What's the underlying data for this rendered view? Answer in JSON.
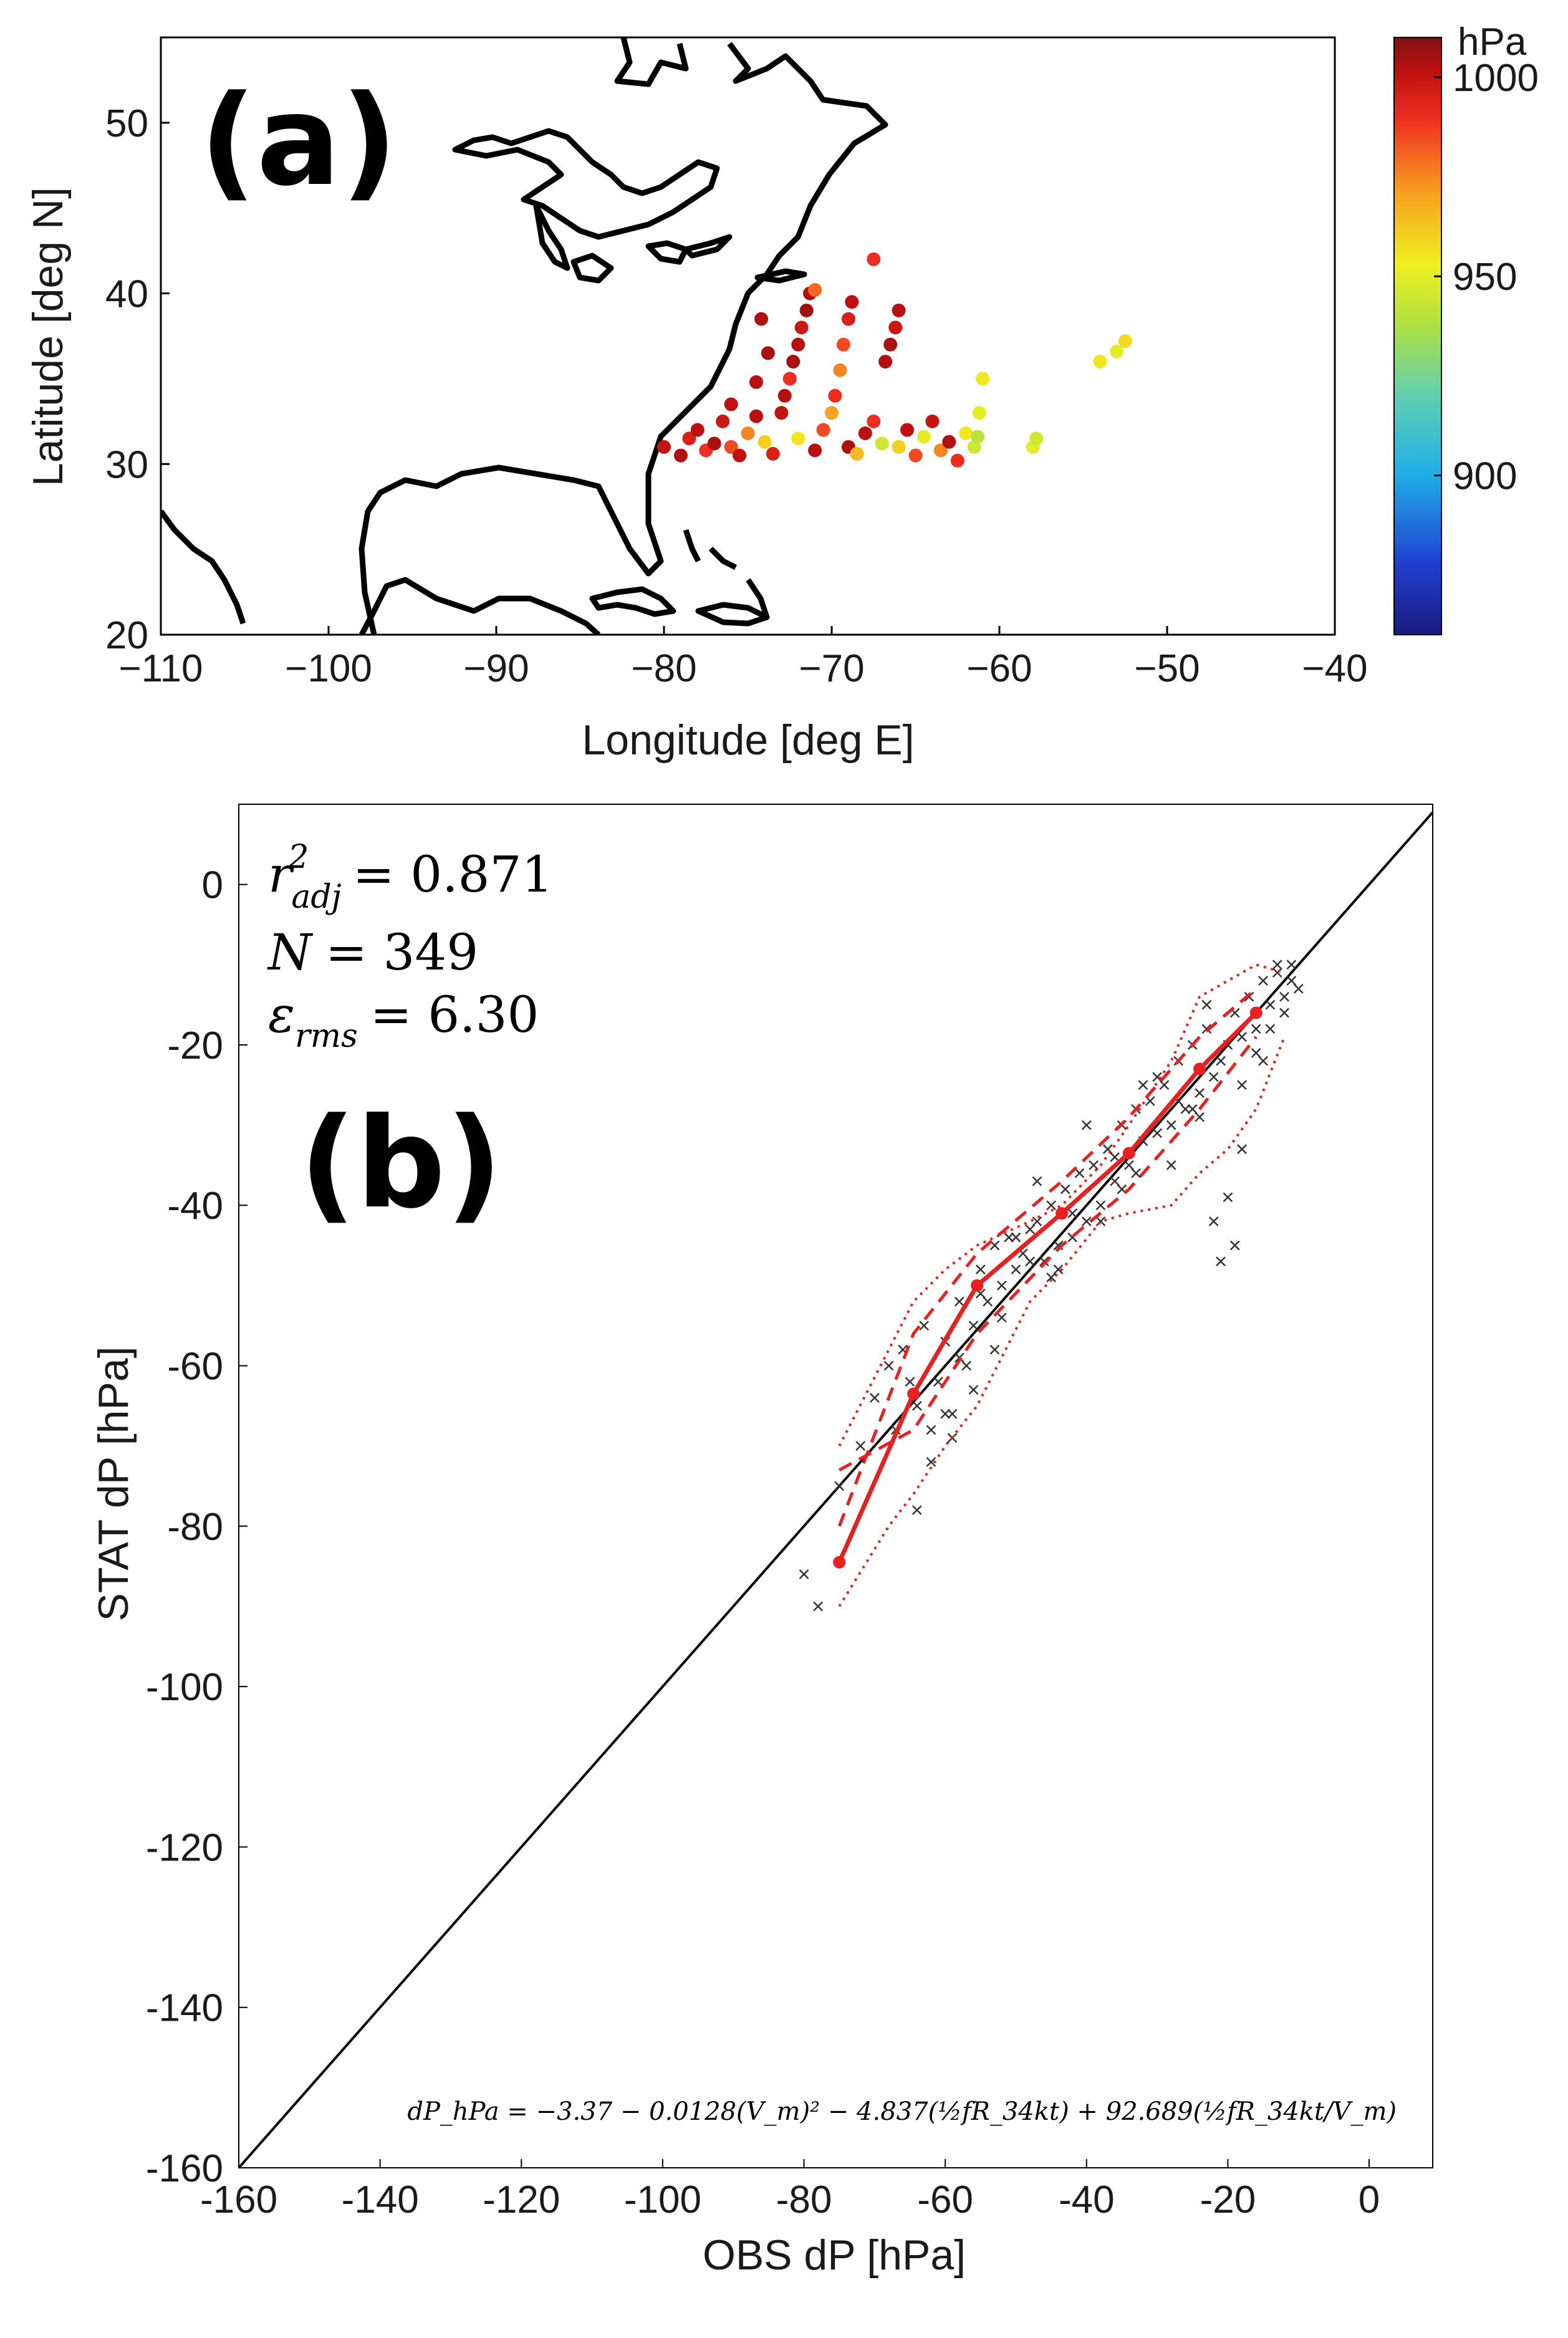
{
  "chart_data": [
    {
      "type": "scatter",
      "panel_label": "(a)",
      "title": "",
      "xlabel": "Longitude [deg E]",
      "ylabel": "Latitude [deg N]",
      "xlim": [
        -110,
        -40
      ],
      "ylim": [
        20,
        55
      ],
      "xticks": [
        -110,
        -100,
        -90,
        -80,
        -70,
        -60,
        -50,
        -40
      ],
      "yticks": [
        20,
        30,
        40,
        50
      ],
      "colorbar": {
        "label": "hPa",
        "range": [
          860,
          1010
        ],
        "ticks": [
          900,
          950,
          1000
        ],
        "colormap": [
          "#1a1a80",
          "#2040d0",
          "#20b0e8",
          "#60d0b0",
          "#b0e040",
          "#f0f020",
          "#f8a020",
          "#f03020",
          "#c01010",
          "#801010"
        ]
      },
      "coastline_color": "#000000",
      "points": [
        {
          "lon": -80,
          "lat": 31,
          "p": 1000
        },
        {
          "lon": -79,
          "lat": 30.5,
          "p": 1003
        },
        {
          "lon": -78.5,
          "lat": 31.5,
          "p": 995
        },
        {
          "lon": -78,
          "lat": 32,
          "p": 1002
        },
        {
          "lon": -77.5,
          "lat": 30.8,
          "p": 990
        },
        {
          "lon": -77,
          "lat": 31.2,
          "p": 1004
        },
        {
          "lon": -76.5,
          "lat": 32.5,
          "p": 998
        },
        {
          "lon": -76,
          "lat": 31,
          "p": 985
        },
        {
          "lon": -75.5,
          "lat": 30.5,
          "p": 1001
        },
        {
          "lon": -75,
          "lat": 31.8,
          "p": 975
        },
        {
          "lon": -74.5,
          "lat": 32.8,
          "p": 1002
        },
        {
          "lon": -74,
          "lat": 31.3,
          "p": 960
        },
        {
          "lon": -73.5,
          "lat": 30.6,
          "p": 995
        },
        {
          "lon": -73,
          "lat": 33,
          "p": 1000
        },
        {
          "lon": -72.8,
          "lat": 34,
          "p": 1003
        },
        {
          "lon": -72.5,
          "lat": 35,
          "p": 990
        },
        {
          "lon": -72.3,
          "lat": 36,
          "p": 1004
        },
        {
          "lon": -72,
          "lat": 37,
          "p": 1002
        },
        {
          "lon": -71.8,
          "lat": 38,
          "p": 998
        },
        {
          "lon": -71.5,
          "lat": 39,
          "p": 1005
        },
        {
          "lon": -71.3,
          "lat": 40,
          "p": 1003
        },
        {
          "lon": -72,
          "lat": 31.5,
          "p": 955
        },
        {
          "lon": -71,
          "lat": 30.8,
          "p": 1002
        },
        {
          "lon": -70.5,
          "lat": 32,
          "p": 985
        },
        {
          "lon": -70,
          "lat": 33,
          "p": 970
        },
        {
          "lon": -69.8,
          "lat": 34,
          "p": 990
        },
        {
          "lon": -69.5,
          "lat": 35.5,
          "p": 975
        },
        {
          "lon": -69.3,
          "lat": 37,
          "p": 985
        },
        {
          "lon": -69,
          "lat": 38.5,
          "p": 995
        },
        {
          "lon": -68.8,
          "lat": 39.5,
          "p": 1001
        },
        {
          "lon": -69,
          "lat": 31,
          "p": 1004
        },
        {
          "lon": -68.5,
          "lat": 30.6,
          "p": 965
        },
        {
          "lon": -68,
          "lat": 31.8,
          "p": 1002
        },
        {
          "lon": -67.5,
          "lat": 32.5,
          "p": 990
        },
        {
          "lon": -67,
          "lat": 31.2,
          "p": 945
        },
        {
          "lon": -66.8,
          "lat": 36,
          "p": 1003
        },
        {
          "lon": -66.5,
          "lat": 37,
          "p": 1004
        },
        {
          "lon": -66.2,
          "lat": 38,
          "p": 998
        },
        {
          "lon": -66,
          "lat": 39,
          "p": 1002
        },
        {
          "lon": -66,
          "lat": 31,
          "p": 960
        },
        {
          "lon": -65.5,
          "lat": 32,
          "p": 1001
        },
        {
          "lon": -65,
          "lat": 30.5,
          "p": 985
        },
        {
          "lon": -64.5,
          "lat": 31.6,
          "p": 950
        },
        {
          "lon": -64,
          "lat": 32.5,
          "p": 1000
        },
        {
          "lon": -63.5,
          "lat": 30.8,
          "p": 975
        },
        {
          "lon": -63,
          "lat": 31.3,
          "p": 1003
        },
        {
          "lon": -62.5,
          "lat": 30.2,
          "p": 990
        },
        {
          "lon": -62,
          "lat": 31.8,
          "p": 955
        },
        {
          "lon": -61.5,
          "lat": 31,
          "p": 945
        },
        {
          "lon": -61.2,
          "lat": 33,
          "p": 950
        },
        {
          "lon": -61,
          "lat": 35,
          "p": 955
        },
        {
          "lon": -61.3,
          "lat": 31.6,
          "p": 940
        },
        {
          "lon": -58,
          "lat": 31,
          "p": 950
        },
        {
          "lon": -57.8,
          "lat": 31.5,
          "p": 945
        },
        {
          "lon": -54,
          "lat": 36,
          "p": 955
        },
        {
          "lon": -53,
          "lat": 36.6,
          "p": 950
        },
        {
          "lon": -52.5,
          "lat": 37.2,
          "p": 958
        },
        {
          "lon": -67.5,
          "lat": 42,
          "p": 990
        },
        {
          "lon": -71,
          "lat": 40.2,
          "p": 980
        },
        {
          "lon": -74.5,
          "lat": 34.8,
          "p": 1002
        },
        {
          "lon": -73.8,
          "lat": 36.5,
          "p": 1004
        },
        {
          "lon": -74.2,
          "lat": 38.5,
          "p": 1003
        },
        {
          "lon": -76,
          "lat": 33.5,
          "p": 1001
        }
      ]
    },
    {
      "type": "scatter",
      "panel_label": "(b)",
      "title": "",
      "xlabel": "OBS dP [hPa]",
      "ylabel": "STAT dP [hPa]",
      "xlim": [
        -160,
        9
      ],
      "ylim": [
        -160,
        10
      ],
      "xticks": [
        -160,
        -140,
        -120,
        -100,
        -80,
        -60,
        -40,
        -20,
        0
      ],
      "yticks": [
        -160,
        -140,
        -120,
        -100,
        -80,
        -60,
        -40,
        -20,
        0
      ],
      "stats": {
        "r2_label": "r",
        "r2_sup": "2",
        "r2_sub": "adj",
        "r2_value": "= 0.871",
        "n_label": "N",
        "n_value": "= 349",
        "eps_label": "ε",
        "eps_sub": "rms",
        "eps_value": "= 6.30"
      },
      "equation": "dP_hPa = −3.37 − 0.0128(V_m)² − 4.837(½fR_34kt) + 92.689(½fR_34kt/V_m)",
      "identity_line": {
        "from": [
          -160,
          -160
        ],
        "to": [
          9,
          9
        ]
      },
      "series": [
        {
          "name": "observations",
          "marker": "x",
          "color": "#333333",
          "x": [
            -80,
            -78,
            -75,
            -72,
            -70,
            -68,
            -66,
            -65,
            -64,
            -63,
            -62,
            -61,
            -60,
            -59,
            -58,
            -57,
            -56,
            -55,
            -54,
            -53,
            -52,
            -51,
            -50,
            -49,
            -48,
            -47,
            -46,
            -45,
            -44,
            -43,
            -42,
            -41,
            -40,
            -39,
            -38,
            -37,
            -36,
            -35,
            -34,
            -33,
            -32,
            -31,
            -30,
            -29,
            -28,
            -27,
            -26,
            -25,
            -24,
            -23,
            -22,
            -21,
            -20,
            -19,
            -18,
            -17,
            -16,
            -15,
            -14,
            -13,
            -12,
            -11,
            -10,
            -62,
            -60,
            -58,
            -55,
            -52,
            -48,
            -45,
            -42,
            -38,
            -35,
            -32,
            -28,
            -25,
            -22,
            -20,
            -18,
            -16,
            -14,
            -12,
            -21,
            -19,
            -24,
            -27,
            -30,
            -33,
            -36,
            -40,
            -44,
            -47,
            -50,
            -53,
            -56,
            -59,
            -64,
            -67,
            -23,
            -18,
            -15,
            -13,
            -11
          ],
          "y": [
            -86,
            -90,
            -75,
            -70,
            -64,
            -60,
            -58,
            -62,
            -65,
            -55,
            -68,
            -62,
            -57,
            -66,
            -52,
            -60,
            -55,
            -48,
            -52,
            -45,
            -50,
            -44,
            -48,
            -46,
            -43,
            -42,
            -47,
            -40,
            -45,
            -38,
            -44,
            -36,
            -42,
            -35,
            -40,
            -33,
            -37,
            -30,
            -35,
            -28,
            -32,
            -27,
            -31,
            -25,
            -30,
            -22,
            -28,
            -20,
            -26,
            -18,
            -24,
            -22,
            -20,
            -16,
            -19,
            -14,
            -18,
            -12,
            -15,
            -11,
            -14,
            -12,
            -13,
            -72,
            -66,
            -59,
            -51,
            -54,
            -47,
            -49,
            -41,
            -42,
            -38,
            -25,
            -35,
            -28,
            -42,
            -39,
            -33,
            -21,
            -18,
            -16,
            -47,
            -45,
            -29,
            -27,
            -24,
            -36,
            -34,
            -30,
            -48,
            -37,
            -44,
            -58,
            -63,
            -69,
            -78,
            -68,
            -15,
            -25,
            -22,
            -10,
            -10
          ]
        },
        {
          "name": "binned mean",
          "style": "solid",
          "color": "#e82020",
          "x": [
            -75,
            -64.5,
            -55.5,
            -43.5,
            -34,
            -24,
            -16
          ],
          "y": [
            -84.5,
            -63.5,
            -50,
            -41,
            -33.5,
            -23,
            -16
          ]
        },
        {
          "name": "±1 std",
          "style": "dashed",
          "color": "#e82020",
          "x": [
            -75,
            -64.5,
            -55.5,
            -43.5,
            -34,
            -24,
            -16
          ],
          "y": [
            -80,
            -56,
            -46,
            -37,
            -29,
            -19,
            -13
          ]
        },
        {
          "name": "±1 std lower",
          "style": "dashed",
          "color": "#e82020",
          "x": [
            -75,
            -64.5,
            -55.5,
            -43.5,
            -34,
            -24,
            -16
          ],
          "y": [
            -73,
            -68,
            -56,
            -45,
            -38,
            -28,
            -19
          ]
        },
        {
          "name": "range upper",
          "style": "dotted",
          "color": "#e82020",
          "x": [
            -75,
            -68,
            -64.5,
            -60,
            -55.5,
            -48,
            -43.5,
            -38,
            -34,
            -28,
            -24,
            -20,
            -16,
            -12
          ],
          "y": [
            -70,
            -58,
            -52,
            -48,
            -45,
            -42,
            -40,
            -35,
            -30,
            -22,
            -14,
            -12,
            -10,
            -11
          ]
        },
        {
          "name": "range lower",
          "style": "dotted",
          "color": "#e82020",
          "x": [
            -75,
            -68,
            -64.5,
            -60,
            -55.5,
            -48,
            -43.5,
            -38,
            -34,
            -28,
            -24,
            -20,
            -16,
            -12
          ],
          "y": [
            -90,
            -80,
            -76,
            -70,
            -65,
            -52,
            -48,
            -42,
            -41,
            -40,
            -36,
            -33,
            -28,
            -19
          ]
        }
      ]
    }
  ]
}
